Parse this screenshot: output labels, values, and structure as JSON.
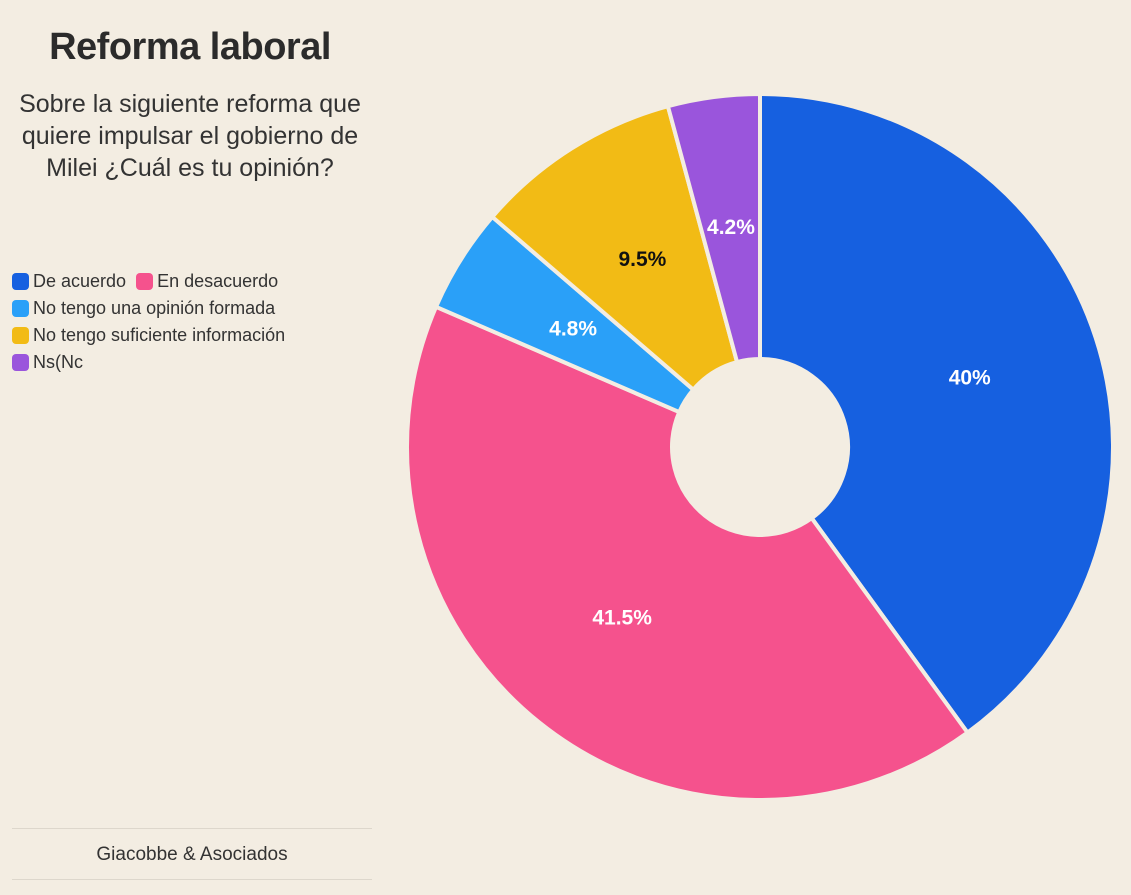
{
  "chart_data": {
    "type": "pie",
    "title": "Reforma laboral",
    "subtitle": "Sobre la siguiente reforma que quiere impulsar el gobierno de Milei ¿Cuál es tu opinión?",
    "categories": [
      "De acuerdo",
      "En desacuerdo",
      "No tengo una opinión formada",
      "No tengo suficiente información",
      "Ns(Nc"
    ],
    "values": [
      40,
      41.5,
      4.8,
      9.5,
      4.2
    ],
    "value_labels": [
      "40%",
      "41.5%",
      "4.8%",
      "9.5%",
      "4.2%"
    ],
    "colors": [
      "#1660e0",
      "#f5528d",
      "#2aa0f8",
      "#f2bb15",
      "#9a55dc"
    ],
    "donut": true,
    "source": "Giacobbe & Asociados"
  }
}
